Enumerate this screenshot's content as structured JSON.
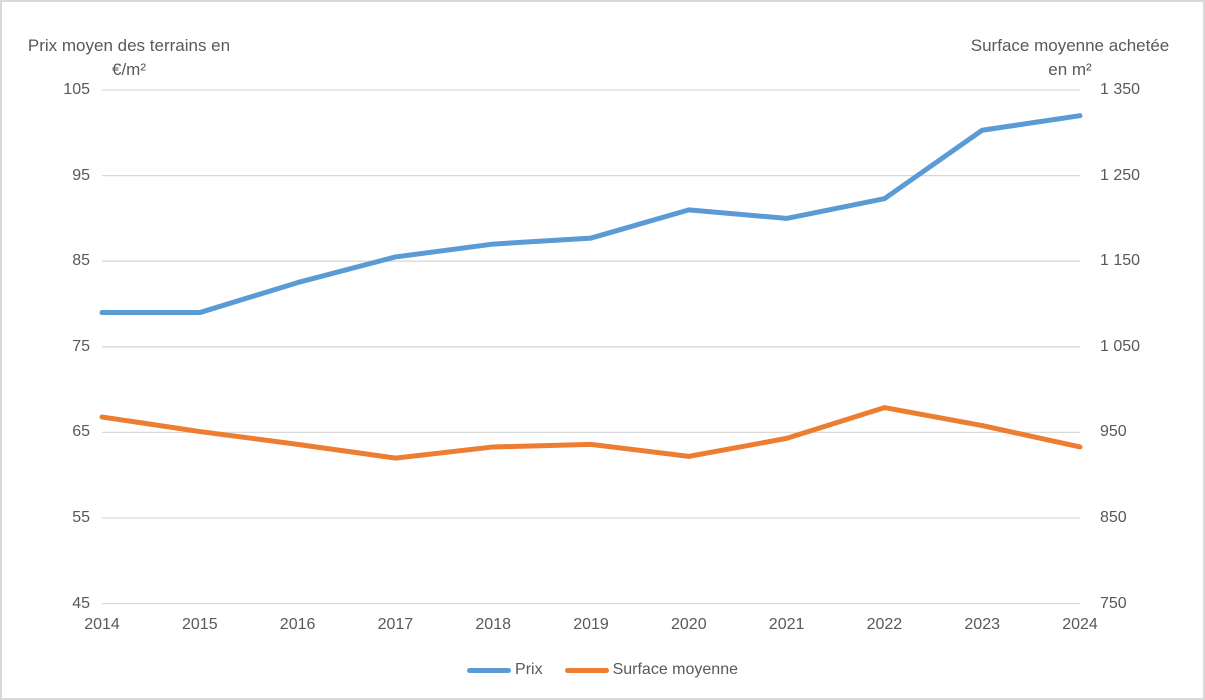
{
  "frame": {
    "background": "#ffffff",
    "border_color": "#d9d9d9"
  },
  "left_axis_title": {
    "line1": "Prix moyen des terrains en",
    "line2": "€/m²"
  },
  "right_axis_title": {
    "line1": "Surface moyenne achetée",
    "line2": "en m²"
  },
  "legend": {
    "position": "bottom",
    "items": [
      {
        "label": "Prix",
        "color": "#5b9bd5"
      },
      {
        "label": "Surface moyenne",
        "color": "#ed7d31"
      }
    ]
  },
  "chart_data": {
    "type": "line",
    "title": "",
    "x": [
      2014,
      2015,
      2016,
      2017,
      2018,
      2019,
      2020,
      2021,
      2022,
      2023,
      2024
    ],
    "x_tick_labels": [
      "2014",
      "2015",
      "2016",
      "2017",
      "2018",
      "2019",
      "2020",
      "2021",
      "2022",
      "2023",
      "2024"
    ],
    "series": [
      {
        "name": "Prix",
        "yaxis": "left",
        "color": "#5b9bd5",
        "values": [
          79,
          79,
          82.5,
          85.5,
          87,
          87.7,
          91,
          90,
          92.3,
          100.3,
          102
        ]
      },
      {
        "name": "Surface moyenne",
        "yaxis": "right",
        "color": "#ed7d31",
        "values": [
          968,
          951,
          936,
          920,
          933,
          936,
          922,
          943,
          979,
          958,
          933
        ]
      }
    ],
    "left_axis": {
      "title": "Prix moyen des terrains en €/m²",
      "min": 45,
      "max": 105,
      "step": 10,
      "tick_labels_top_to_bottom": [
        "105",
        "95",
        "85",
        "75",
        "65",
        "55",
        "45"
      ]
    },
    "right_axis": {
      "title": "Surface moyenne achetée en m²",
      "min": 750,
      "max": 1350,
      "step": 100,
      "tick_labels_top_to_bottom": [
        "1 350",
        "1 250",
        "1 150",
        "1 050",
        "950",
        "850",
        "750"
      ]
    },
    "grid": true,
    "grid_color": "#d9d9d9",
    "text_color": "#595959",
    "line_width": 5,
    "legend_position": "bottom"
  }
}
